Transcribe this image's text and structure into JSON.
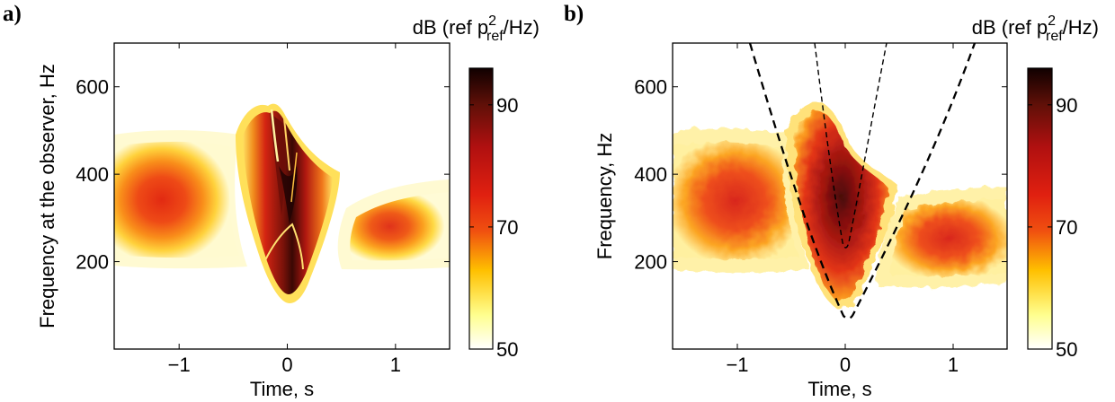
{
  "chart_data": [
    {
      "panel": "a)",
      "type": "heatmap",
      "xlabel": "Time, s",
      "ylabel": "Frequency at the observer, Hz",
      "xlim": [
        -1.6,
        1.5
      ],
      "ylim": [
        0,
        700
      ],
      "xticks": [
        -1,
        0,
        1
      ],
      "xtick_labels": [
        "−1",
        "0",
        "1"
      ],
      "yticks": [
        200,
        400,
        600
      ],
      "ytick_labels": [
        "200",
        "400",
        "600"
      ],
      "colorbar": {
        "label_prefix": "dB (ref p",
        "label_sup": "2",
        "label_sub": "ref",
        "label_suffix": "/Hz)",
        "range": [
          50,
          96
        ],
        "ticks": [
          50,
          70,
          90
        ],
        "tick_labels": [
          "50",
          "70",
          "90"
        ],
        "colormap": "hot-inverted"
      },
      "features": [
        {
          "name": "approach",
          "t_range": [
            -1.6,
            -0.35
          ],
          "f_center": 350,
          "peak_dB": 72
        },
        {
          "name": "pass-by V",
          "t_vertex": 0,
          "f_vertex": 140,
          "f_top": 560,
          "peak_dB": 96
        },
        {
          "name": "recede",
          "t_range": [
            0.35,
            1.5
          ],
          "f_center": 260,
          "peak_dB": 72
        }
      ]
    },
    {
      "panel": "b)",
      "type": "heatmap",
      "xlabel": "Time, s",
      "ylabel": "Frequency, Hz",
      "xlim": [
        -1.6,
        1.5
      ],
      "ylim": [
        0,
        700
      ],
      "xticks": [
        -1,
        0,
        1
      ],
      "xtick_labels": [
        "−1",
        "0",
        "1"
      ],
      "yticks": [
        200,
        400,
        600
      ],
      "ytick_labels": [
        "200",
        "400",
        "600"
      ],
      "colorbar": {
        "label_prefix": "dB (ref p",
        "label_sup": "2",
        "label_sub": "ref",
        "label_suffix": "/Hz)",
        "range": [
          50,
          96
        ],
        "ticks": [
          50,
          70,
          90
        ],
        "tick_labels": [
          "50",
          "70",
          "90"
        ],
        "colormap": "hot-inverted"
      },
      "dashed_curves": [
        {
          "name": "outer",
          "points": [
            [
              -0.9,
              700
            ],
            [
              0,
              80
            ],
            [
              1.2,
              700
            ]
          ]
        },
        {
          "name": "inner",
          "points": [
            [
              -0.27,
              700
            ],
            [
              0,
              240
            ],
            [
              0.38,
              700
            ]
          ]
        }
      ]
    }
  ]
}
